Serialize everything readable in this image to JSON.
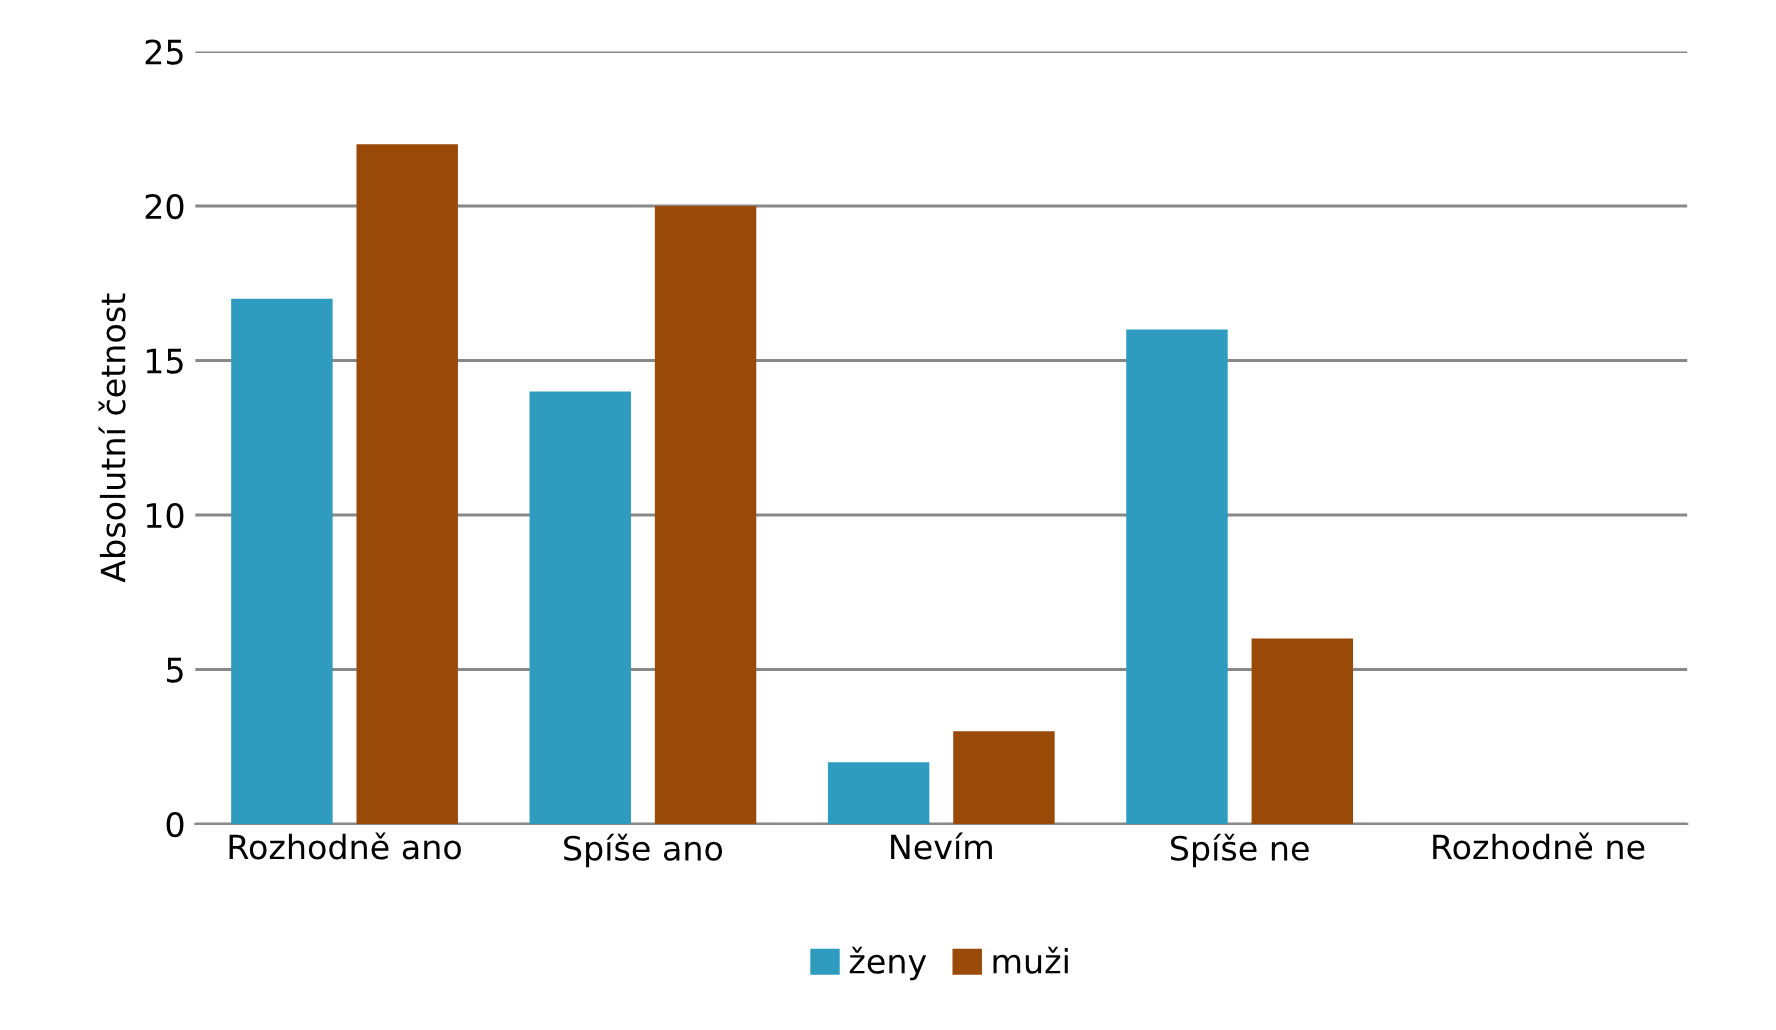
{
  "chart_data": {
    "type": "bar",
    "ylabel": "Absolutní četnost",
    "categories": [
      "Rozhodně ano",
      "Spíše ano",
      "Nevím",
      "Spíše ne",
      "Rozhodně ne"
    ],
    "series": [
      {
        "name": "ženy",
        "color": "#2e9bbf",
        "values": [
          17,
          14,
          2,
          16,
          0
        ]
      },
      {
        "name": "muži",
        "color": "#9a4a08",
        "values": [
          22,
          20,
          3,
          6,
          0
        ]
      }
    ],
    "ylim": [
      0,
      25
    ],
    "yticks": [
      0,
      5,
      10,
      15,
      20,
      25
    ],
    "grid": "y",
    "legend": "bottom"
  }
}
